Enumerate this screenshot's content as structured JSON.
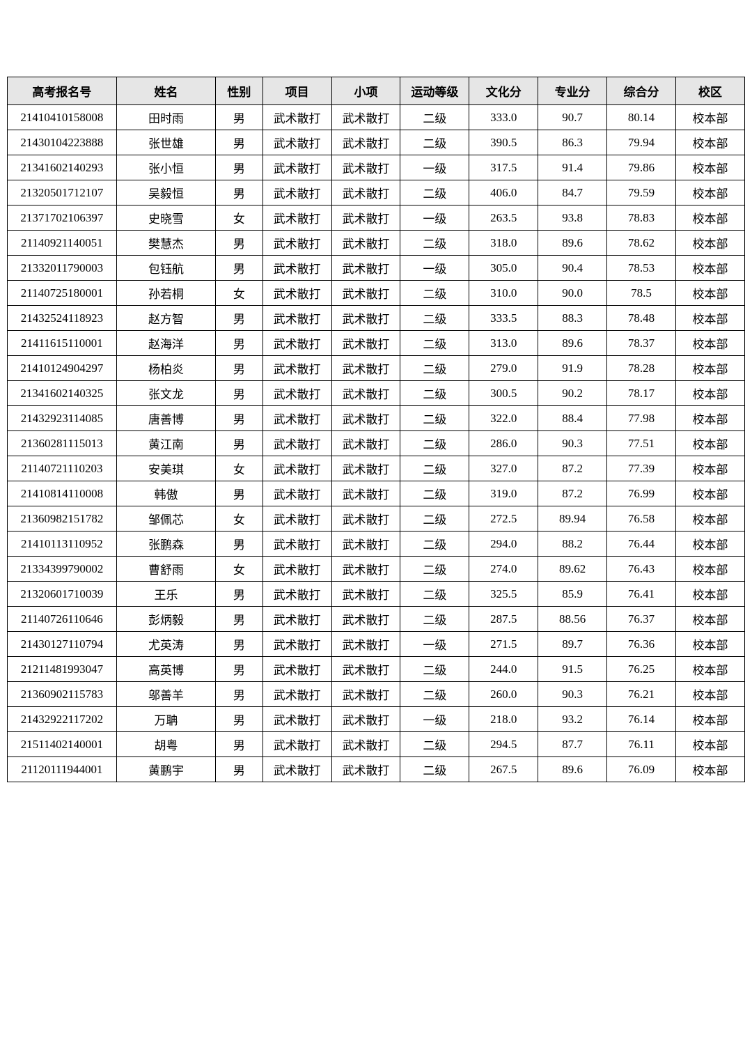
{
  "table": {
    "columns": [
      {
        "key": "id",
        "label": "高考报名号"
      },
      {
        "key": "name",
        "label": "姓名"
      },
      {
        "key": "gender",
        "label": "性别"
      },
      {
        "key": "project",
        "label": "项目"
      },
      {
        "key": "sub",
        "label": "小项"
      },
      {
        "key": "grade",
        "label": "运动等级"
      },
      {
        "key": "culture",
        "label": "文化分"
      },
      {
        "key": "prof",
        "label": "专业分"
      },
      {
        "key": "total",
        "label": "综合分"
      },
      {
        "key": "campus",
        "label": "校区"
      }
    ],
    "rows": [
      {
        "id": "21410410158008",
        "name": "田时雨",
        "gender": "男",
        "project": "武术散打",
        "sub": "武术散打",
        "grade": "二级",
        "culture": "333.0",
        "prof": "90.7",
        "total": "80.14",
        "campus": "校本部"
      },
      {
        "id": "21430104223888",
        "name": "张世雄",
        "gender": "男",
        "project": "武术散打",
        "sub": "武术散打",
        "grade": "二级",
        "culture": "390.5",
        "prof": "86.3",
        "total": "79.94",
        "campus": "校本部"
      },
      {
        "id": "21341602140293",
        "name": "张小恒",
        "gender": "男",
        "project": "武术散打",
        "sub": "武术散打",
        "grade": "一级",
        "culture": "317.5",
        "prof": "91.4",
        "total": "79.86",
        "campus": "校本部"
      },
      {
        "id": "21320501712107",
        "name": "吴毅恒",
        "gender": "男",
        "project": "武术散打",
        "sub": "武术散打",
        "grade": "二级",
        "culture": "406.0",
        "prof": "84.7",
        "total": "79.59",
        "campus": "校本部"
      },
      {
        "id": "21371702106397",
        "name": "史晓雪",
        "gender": "女",
        "project": "武术散打",
        "sub": "武术散打",
        "grade": "一级",
        "culture": "263.5",
        "prof": "93.8",
        "total": "78.83",
        "campus": "校本部"
      },
      {
        "id": "21140921140051",
        "name": "樊慧杰",
        "gender": "男",
        "project": "武术散打",
        "sub": "武术散打",
        "grade": "二级",
        "culture": "318.0",
        "prof": "89.6",
        "total": "78.62",
        "campus": "校本部"
      },
      {
        "id": "21332011790003",
        "name": "包钰航",
        "gender": "男",
        "project": "武术散打",
        "sub": "武术散打",
        "grade": "一级",
        "culture": "305.0",
        "prof": "90.4",
        "total": "78.53",
        "campus": "校本部"
      },
      {
        "id": "21140725180001",
        "name": "孙若桐",
        "gender": "女",
        "project": "武术散打",
        "sub": "武术散打",
        "grade": "二级",
        "culture": "310.0",
        "prof": "90.0",
        "total": "78.5",
        "campus": "校本部"
      },
      {
        "id": "21432524118923",
        "name": "赵方智",
        "gender": "男",
        "project": "武术散打",
        "sub": "武术散打",
        "grade": "二级",
        "culture": "333.5",
        "prof": "88.3",
        "total": "78.48",
        "campus": "校本部"
      },
      {
        "id": "21411615110001",
        "name": "赵海洋",
        "gender": "男",
        "project": "武术散打",
        "sub": "武术散打",
        "grade": "二级",
        "culture": "313.0",
        "prof": "89.6",
        "total": "78.37",
        "campus": "校本部"
      },
      {
        "id": "21410124904297",
        "name": "杨柏炎",
        "gender": "男",
        "project": "武术散打",
        "sub": "武术散打",
        "grade": "二级",
        "culture": "279.0",
        "prof": "91.9",
        "total": "78.28",
        "campus": "校本部"
      },
      {
        "id": "21341602140325",
        "name": "张文龙",
        "gender": "男",
        "project": "武术散打",
        "sub": "武术散打",
        "grade": "二级",
        "culture": "300.5",
        "prof": "90.2",
        "total": "78.17",
        "campus": "校本部"
      },
      {
        "id": "21432923114085",
        "name": "唐善博",
        "gender": "男",
        "project": "武术散打",
        "sub": "武术散打",
        "grade": "二级",
        "culture": "322.0",
        "prof": "88.4",
        "total": "77.98",
        "campus": "校本部"
      },
      {
        "id": "21360281115013",
        "name": "黄江南",
        "gender": "男",
        "project": "武术散打",
        "sub": "武术散打",
        "grade": "二级",
        "culture": "286.0",
        "prof": "90.3",
        "total": "77.51",
        "campus": "校本部"
      },
      {
        "id": "21140721110203",
        "name": "安美琪",
        "gender": "女",
        "project": "武术散打",
        "sub": "武术散打",
        "grade": "二级",
        "culture": "327.0",
        "prof": "87.2",
        "total": "77.39",
        "campus": "校本部"
      },
      {
        "id": "21410814110008",
        "name": "韩傲",
        "gender": "男",
        "project": "武术散打",
        "sub": "武术散打",
        "grade": "二级",
        "culture": "319.0",
        "prof": "87.2",
        "total": "76.99",
        "campus": "校本部"
      },
      {
        "id": "21360982151782",
        "name": "邹佩芯",
        "gender": "女",
        "project": "武术散打",
        "sub": "武术散打",
        "grade": "二级",
        "culture": "272.5",
        "prof": "89.94",
        "total": "76.58",
        "campus": "校本部"
      },
      {
        "id": "21410113110952",
        "name": "张鹏森",
        "gender": "男",
        "project": "武术散打",
        "sub": "武术散打",
        "grade": "二级",
        "culture": "294.0",
        "prof": "88.2",
        "total": "76.44",
        "campus": "校本部"
      },
      {
        "id": "21334399790002",
        "name": "曹舒雨",
        "gender": "女",
        "project": "武术散打",
        "sub": "武术散打",
        "grade": "二级",
        "culture": "274.0",
        "prof": "89.62",
        "total": "76.43",
        "campus": "校本部"
      },
      {
        "id": "21320601710039",
        "name": "王乐",
        "gender": "男",
        "project": "武术散打",
        "sub": "武术散打",
        "grade": "二级",
        "culture": "325.5",
        "prof": "85.9",
        "total": "76.41",
        "campus": "校本部"
      },
      {
        "id": "21140726110646",
        "name": "彭炳毅",
        "gender": "男",
        "project": "武术散打",
        "sub": "武术散打",
        "grade": "二级",
        "culture": "287.5",
        "prof": "88.56",
        "total": "76.37",
        "campus": "校本部"
      },
      {
        "id": "21430127110794",
        "name": "尤英涛",
        "gender": "男",
        "project": "武术散打",
        "sub": "武术散打",
        "grade": "一级",
        "culture": "271.5",
        "prof": "89.7",
        "total": "76.36",
        "campus": "校本部"
      },
      {
        "id": "21211481993047",
        "name": "高英博",
        "gender": "男",
        "project": "武术散打",
        "sub": "武术散打",
        "grade": "二级",
        "culture": "244.0",
        "prof": "91.5",
        "total": "76.25",
        "campus": "校本部"
      },
      {
        "id": "21360902115783",
        "name": "邬善羊",
        "gender": "男",
        "project": "武术散打",
        "sub": "武术散打",
        "grade": "二级",
        "culture": "260.0",
        "prof": "90.3",
        "total": "76.21",
        "campus": "校本部"
      },
      {
        "id": "21432922117202",
        "name": "万聃",
        "gender": "男",
        "project": "武术散打",
        "sub": "武术散打",
        "grade": "一级",
        "culture": "218.0",
        "prof": "93.2",
        "total": "76.14",
        "campus": "校本部"
      },
      {
        "id": "21511402140001",
        "name": "胡粤",
        "gender": "男",
        "project": "武术散打",
        "sub": "武术散打",
        "grade": "二级",
        "culture": "294.5",
        "prof": "87.7",
        "total": "76.11",
        "campus": "校本部"
      },
      {
        "id": "21120111944001",
        "name": "黄鹏宇",
        "gender": "男",
        "project": "武术散打",
        "sub": "武术散打",
        "grade": "二级",
        "culture": "267.5",
        "prof": "89.6",
        "total": "76.09",
        "campus": "校本部"
      }
    ]
  }
}
